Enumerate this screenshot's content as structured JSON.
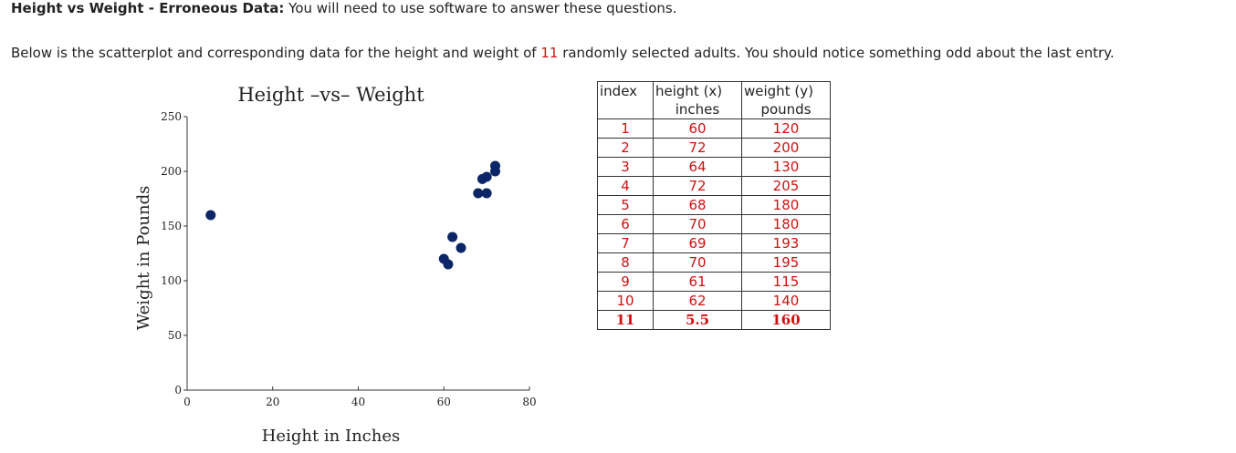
{
  "header": {
    "title_bold": "Height vs Weight - Erroneous Data:",
    "title_rest": " You will need to use software to answer these questions."
  },
  "intro": {
    "before": "Below is the scatterplot and corresponding data for the height and weight of ",
    "count": "11",
    "after": " randomly selected adults. You should notice something odd about the last entry."
  },
  "colors": {
    "dot": "#0b2566",
    "table_value": "#d01010"
  },
  "chart_data": {
    "type": "scatter",
    "title": "Height –vs– Weight",
    "xlabel": "Height in Inches",
    "ylabel": "Weight in Pounds",
    "xlim": [
      0,
      80
    ],
    "ylim": [
      0,
      250
    ],
    "xticks": [
      0,
      20,
      40,
      60,
      80
    ],
    "yticks": [
      0,
      50,
      100,
      150,
      200,
      250
    ],
    "grid": false,
    "points": [
      {
        "x": 60,
        "y": 120
      },
      {
        "x": 72,
        "y": 200
      },
      {
        "x": 64,
        "y": 130
      },
      {
        "x": 72,
        "y": 205
      },
      {
        "x": 68,
        "y": 180
      },
      {
        "x": 70,
        "y": 180
      },
      {
        "x": 69,
        "y": 193
      },
      {
        "x": 70,
        "y": 195
      },
      {
        "x": 61,
        "y": 115
      },
      {
        "x": 62,
        "y": 140
      },
      {
        "x": 5.5,
        "y": 160
      }
    ]
  },
  "table": {
    "headers": [
      {
        "label": "index",
        "sub": ""
      },
      {
        "label": "height (x)",
        "sub": "inches"
      },
      {
        "label": "weight (y)",
        "sub": "pounds"
      }
    ],
    "rows": [
      {
        "index": "1",
        "height": "60",
        "weight": "120"
      },
      {
        "index": "2",
        "height": "72",
        "weight": "200"
      },
      {
        "index": "3",
        "height": "64",
        "weight": "130"
      },
      {
        "index": "4",
        "height": "72",
        "weight": "205"
      },
      {
        "index": "5",
        "height": "68",
        "weight": "180"
      },
      {
        "index": "6",
        "height": "70",
        "weight": "180"
      },
      {
        "index": "7",
        "height": "69",
        "weight": "193"
      },
      {
        "index": "8",
        "height": "70",
        "weight": "195"
      },
      {
        "index": "9",
        "height": "61",
        "weight": "115"
      },
      {
        "index": "10",
        "height": "62",
        "weight": "140"
      },
      {
        "index": "11",
        "height": "5.5",
        "weight": "160"
      }
    ]
  }
}
